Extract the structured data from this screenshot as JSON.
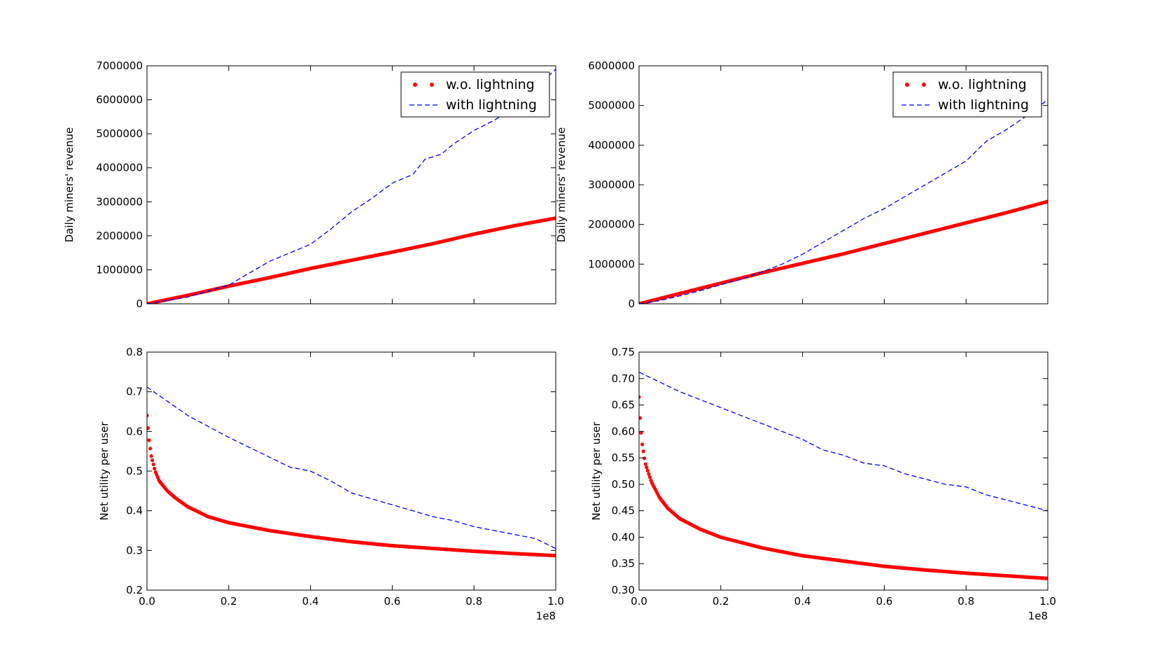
{
  "chart_data": [
    {
      "type": "line",
      "ylabel": "Daily miners' revenue",
      "xlim": [
        0,
        100000000
      ],
      "ylim": [
        0,
        7000000
      ],
      "x_ticks": [
        0,
        20000000,
        40000000,
        60000000,
        80000000,
        100000000
      ],
      "x_tick_labels": [
        "",
        "",
        "",
        "",
        "",
        ""
      ],
      "x_offset_label": "",
      "y_ticks": [
        0,
        1000000,
        2000000,
        3000000,
        4000000,
        5000000,
        6000000,
        7000000
      ],
      "y_tick_labels": [
        "0",
        "1000000",
        "2000000",
        "3000000",
        "4000000",
        "5000000",
        "6000000",
        "7000000"
      ],
      "legend": "top-right",
      "series": [
        {
          "name": "w.o. lightning",
          "style": "dotted",
          "color": "#ff0000",
          "x": [
            0,
            10000000,
            20000000,
            30000000,
            40000000,
            50000000,
            60000000,
            70000000,
            80000000,
            90000000,
            100000000
          ],
          "y": [
            0,
            250000,
            520000,
            770000,
            1040000,
            1280000,
            1520000,
            1770000,
            2050000,
            2300000,
            2520000
          ]
        },
        {
          "name": "with lightning",
          "style": "dashed",
          "color": "#0000ff",
          "x": [
            0,
            10000000,
            20000000,
            25000000,
            30000000,
            35000000,
            40000000,
            45000000,
            50000000,
            55000000,
            60000000,
            65000000,
            68000000,
            72000000,
            75000000,
            80000000,
            85000000,
            90000000,
            95000000,
            100000000
          ],
          "y": [
            0,
            200000,
            550000,
            900000,
            1250000,
            1500000,
            1750000,
            2200000,
            2700000,
            3100000,
            3550000,
            3800000,
            4250000,
            4400000,
            4700000,
            5100000,
            5400000,
            5800000,
            6350000,
            6900000
          ]
        }
      ]
    },
    {
      "type": "line",
      "ylabel": "Daily miners' revenue",
      "xlim": [
        0,
        100000000
      ],
      "ylim": [
        0,
        6000000
      ],
      "x_ticks": [
        0,
        20000000,
        40000000,
        60000000,
        80000000,
        100000000
      ],
      "x_tick_labels": [
        "",
        "",
        "",
        "",
        "",
        ""
      ],
      "x_offset_label": "",
      "y_ticks": [
        0,
        1000000,
        2000000,
        3000000,
        4000000,
        5000000,
        6000000
      ],
      "y_tick_labels": [
        "0",
        "1000000",
        "2000000",
        "3000000",
        "4000000",
        "5000000",
        "6000000"
      ],
      "legend": "top-right",
      "series": [
        {
          "name": "w.o. lightning",
          "style": "dotted",
          "color": "#ff0000",
          "x": [
            0,
            10000000,
            20000000,
            30000000,
            40000000,
            50000000,
            60000000,
            70000000,
            80000000,
            90000000,
            100000000
          ],
          "y": [
            0,
            260000,
            520000,
            780000,
            1020000,
            1260000,
            1520000,
            1780000,
            2040000,
            2300000,
            2580000
          ]
        },
        {
          "name": "with lightning",
          "style": "dashed",
          "color": "#0000ff",
          "x": [
            0,
            5000000,
            10000000,
            15000000,
            20000000,
            25000000,
            30000000,
            35000000,
            40000000,
            45000000,
            50000000,
            55000000,
            60000000,
            65000000,
            70000000,
            75000000,
            80000000,
            85000000,
            90000000,
            95000000,
            100000000
          ],
          "y": [
            0,
            80000,
            200000,
            330000,
            480000,
            620000,
            800000,
            1000000,
            1250000,
            1550000,
            1850000,
            2150000,
            2400000,
            2700000,
            3000000,
            3300000,
            3600000,
            4100000,
            4400000,
            4750000,
            5150000
          ]
        }
      ]
    },
    {
      "type": "line",
      "ylabel": "Net utility per user",
      "xlim": [
        0,
        100000000
      ],
      "ylim": [
        0.2,
        0.8
      ],
      "x_ticks": [
        0,
        20000000,
        40000000,
        60000000,
        80000000,
        100000000
      ],
      "x_tick_labels": [
        "0.0",
        "0.2",
        "0.4",
        "0.6",
        "0.8",
        "1.0"
      ],
      "x_offset_label": "1e8",
      "y_ticks": [
        0.2,
        0.3,
        0.4,
        0.5,
        0.6,
        0.7,
        0.8
      ],
      "y_tick_labels": [
        "0.2",
        "0.3",
        "0.4",
        "0.5",
        "0.6",
        "0.7",
        "0.8"
      ],
      "legend": "none",
      "series": [
        {
          "style": "dotted",
          "color": "#ff0000",
          "x": [
            0,
            500000,
            1000000,
            2000000,
            3000000,
            5000000,
            7000000,
            10000000,
            15000000,
            20000000,
            30000000,
            40000000,
            50000000,
            60000000,
            70000000,
            80000000,
            90000000,
            100000000
          ],
          "y": [
            0.64,
            0.58,
            0.54,
            0.5,
            0.475,
            0.45,
            0.432,
            0.41,
            0.385,
            0.37,
            0.35,
            0.335,
            0.322,
            0.312,
            0.305,
            0.298,
            0.292,
            0.287
          ]
        },
        {
          "style": "dashed",
          "color": "#0000ff",
          "x": [
            0,
            10000000,
            20000000,
            25000000,
            30000000,
            35000000,
            40000000,
            45000000,
            50000000,
            55000000,
            60000000,
            65000000,
            70000000,
            75000000,
            80000000,
            85000000,
            90000000,
            95000000,
            100000000
          ],
          "y": [
            0.712,
            0.64,
            0.585,
            0.56,
            0.535,
            0.51,
            0.5,
            0.475,
            0.445,
            0.43,
            0.415,
            0.4,
            0.385,
            0.375,
            0.36,
            0.35,
            0.34,
            0.33,
            0.305
          ]
        }
      ]
    },
    {
      "type": "line",
      "ylabel": "Net utility per user",
      "xlim": [
        0,
        100000000
      ],
      "ylim": [
        0.3,
        0.75
      ],
      "x_ticks": [
        0,
        20000000,
        40000000,
        60000000,
        80000000,
        100000000
      ],
      "x_tick_labels": [
        "0.0",
        "0.2",
        "0.4",
        "0.6",
        "0.8",
        "1.0"
      ],
      "x_offset_label": "1e8",
      "y_ticks": [
        0.3,
        0.35,
        0.4,
        0.45,
        0.5,
        0.55,
        0.6,
        0.65,
        0.7,
        0.75
      ],
      "y_tick_labels": [
        "0.30",
        "0.35",
        "0.40",
        "0.45",
        "0.50",
        "0.55",
        "0.60",
        "0.65",
        "0.70",
        "0.75"
      ],
      "legend": "none",
      "series": [
        {
          "style": "dotted",
          "color": "#ff0000",
          "x": [
            0,
            300000,
            700000,
            1500000,
            3000000,
            5000000,
            7000000,
            10000000,
            15000000,
            20000000,
            30000000,
            40000000,
            50000000,
            60000000,
            70000000,
            80000000,
            90000000,
            100000000
          ],
          "y": [
            0.665,
            0.62,
            0.58,
            0.54,
            0.505,
            0.475,
            0.455,
            0.435,
            0.415,
            0.4,
            0.38,
            0.365,
            0.355,
            0.345,
            0.338,
            0.332,
            0.327,
            0.322
          ]
        },
        {
          "style": "dashed",
          "color": "#0000ff",
          "x": [
            0,
            10000000,
            20000000,
            30000000,
            40000000,
            45000000,
            50000000,
            55000000,
            60000000,
            65000000,
            70000000,
            75000000,
            80000000,
            85000000,
            90000000,
            95000000,
            100000000
          ],
          "y": [
            0.712,
            0.675,
            0.645,
            0.615,
            0.585,
            0.565,
            0.555,
            0.54,
            0.535,
            0.52,
            0.51,
            0.5,
            0.495,
            0.48,
            0.47,
            0.46,
            0.45
          ]
        }
      ]
    }
  ]
}
